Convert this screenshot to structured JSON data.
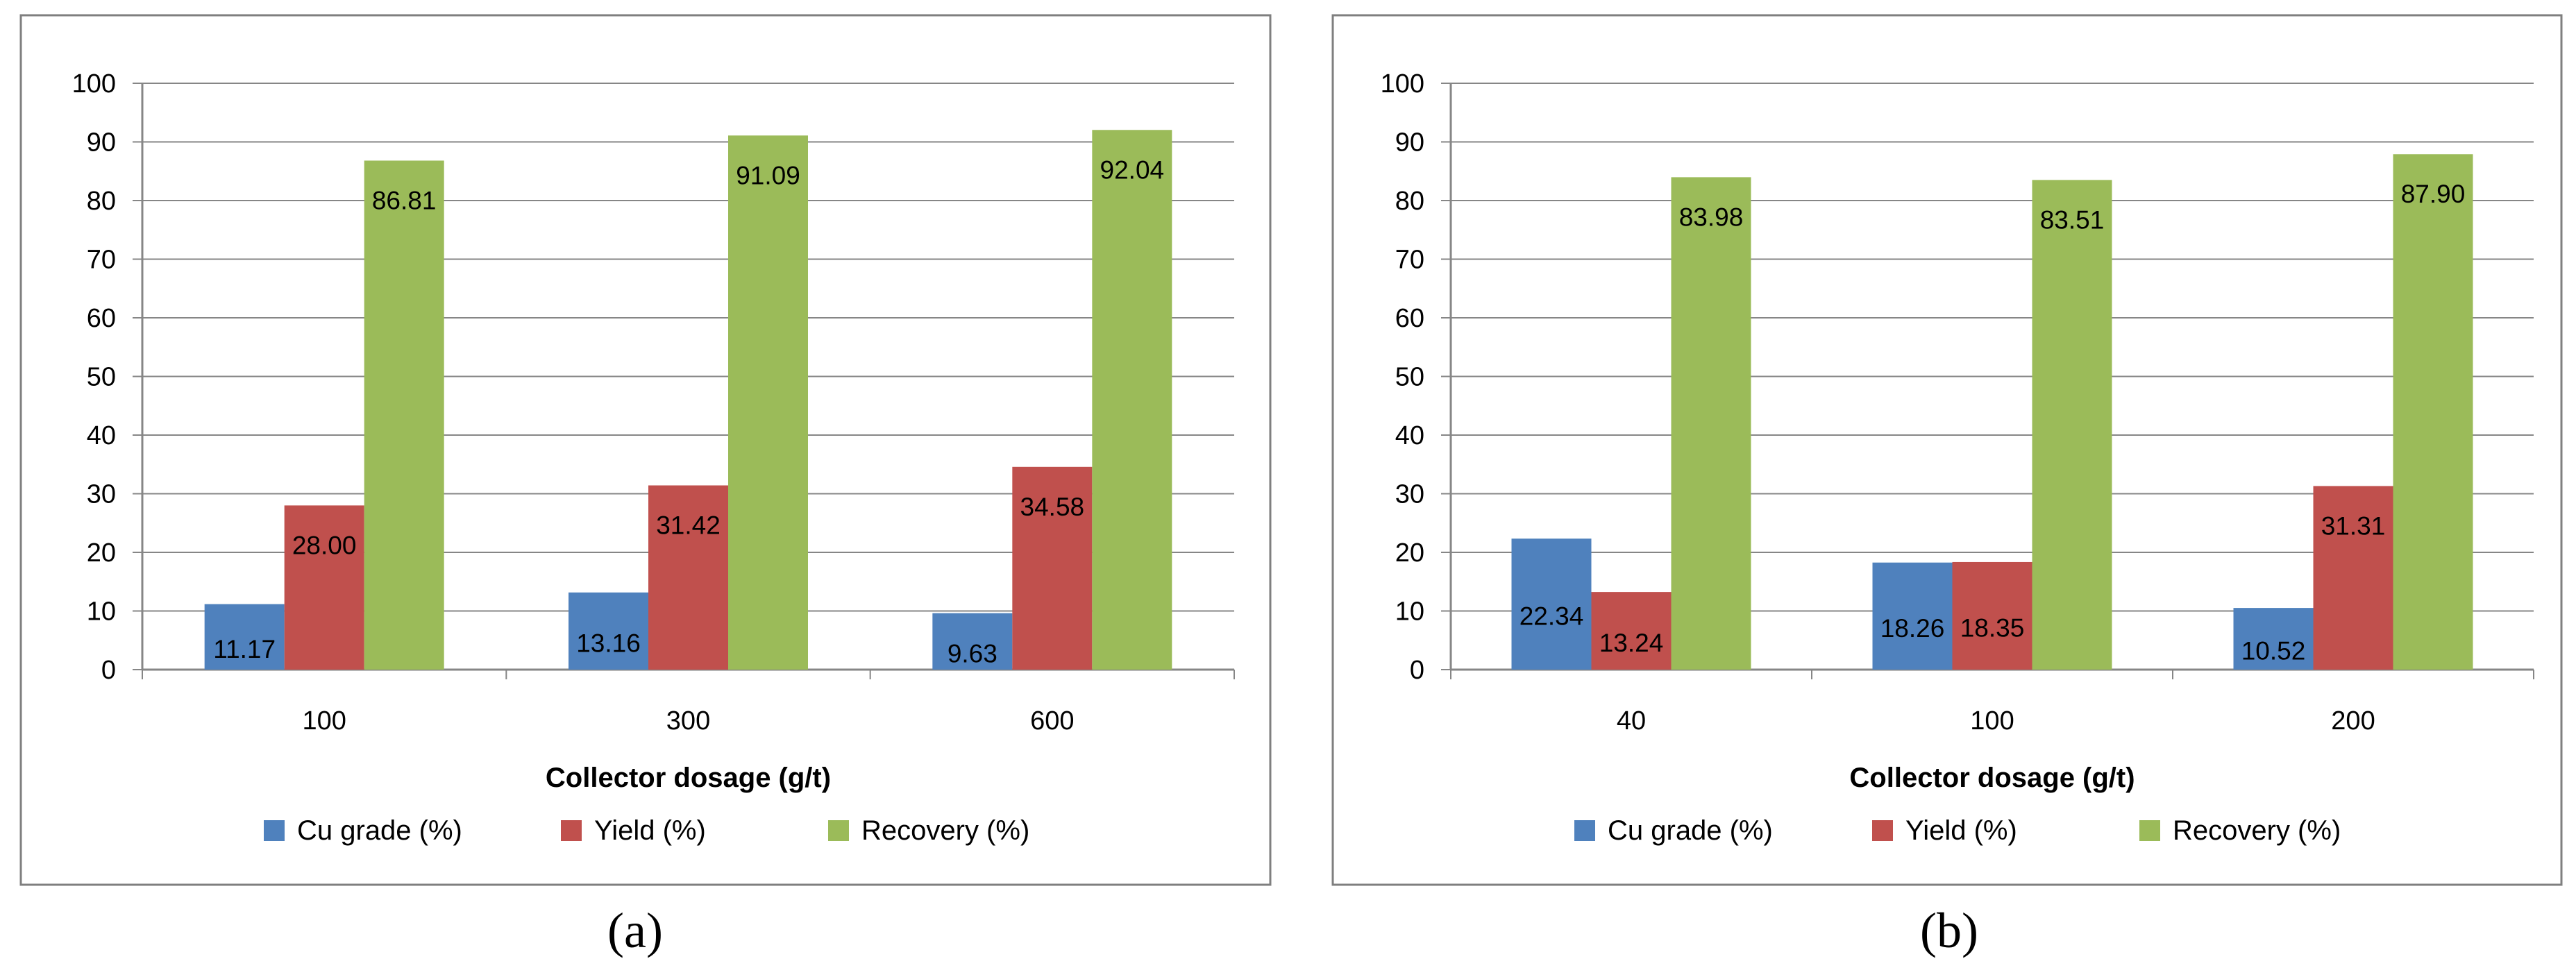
{
  "chart_data": [
    {
      "type": "bar",
      "panel": "(a)",
      "categories": [
        "100",
        "300",
        "600"
      ],
      "series": [
        {
          "name": "Cu grade (%)",
          "color": "#4F81BD",
          "values": [
            11.17,
            13.16,
            9.63
          ],
          "labels": [
            "11.17",
            "13.16",
            "9.63"
          ]
        },
        {
          "name": "Yield (%)",
          "color": "#C0504D",
          "values": [
            28.0,
            31.42,
            34.58
          ],
          "labels": [
            "28.00",
            "31.42",
            "34.58"
          ]
        },
        {
          "name": "Recovery (%)",
          "color": "#9BBB59",
          "values": [
            86.81,
            91.09,
            92.04
          ],
          "labels": [
            "86.81",
            "91.09",
            "92.04"
          ]
        }
      ],
      "xlabel": "Collector dosage (g/t)",
      "ylabel": "",
      "ylim": [
        0,
        100
      ],
      "yticks": [
        "0",
        "10",
        "20",
        "30",
        "40",
        "50",
        "60",
        "70",
        "80",
        "90",
        "100"
      ],
      "grid": true,
      "legend": "bottom"
    },
    {
      "type": "bar",
      "panel": "(b)",
      "categories": [
        "40",
        "100",
        "200"
      ],
      "series": [
        {
          "name": "Cu grade (%)",
          "color": "#4F81BD",
          "values": [
            22.34,
            18.26,
            10.52
          ],
          "labels": [
            "22.34",
            "18.26",
            "10.52"
          ]
        },
        {
          "name": "Yield (%)",
          "color": "#C0504D",
          "values": [
            13.24,
            18.35,
            31.31
          ],
          "labels": [
            "13.24",
            "18.35",
            "31.31"
          ]
        },
        {
          "name": "Recovery (%)",
          "color": "#9BBB59",
          "values": [
            83.98,
            83.51,
            87.9
          ],
          "labels": [
            "83.98",
            "83.51",
            "87.90"
          ]
        }
      ],
      "xlabel": "Collector dosage (g/t)",
      "ylabel": "",
      "ylim": [
        0,
        100
      ],
      "yticks": [
        "0",
        "10",
        "20",
        "30",
        "40",
        "50",
        "60",
        "70",
        "80",
        "90",
        "100"
      ],
      "grid": true,
      "legend": "bottom"
    }
  ]
}
